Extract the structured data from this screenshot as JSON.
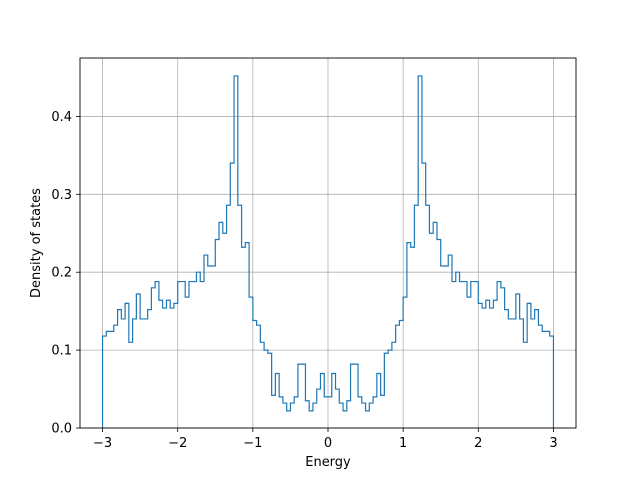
{
  "chart_data": {
    "type": "histogram-step",
    "title": "",
    "xlabel": "Energy",
    "ylabel": "Density of states",
    "xlim": [
      -3.3,
      3.3
    ],
    "ylim": [
      0,
      0.475
    ],
    "xticks": [
      -3,
      -2,
      -1,
      0,
      1,
      2,
      3
    ],
    "xtick_labels": [
      "−3",
      "−2",
      "−1",
      "0",
      "1",
      "2",
      "3"
    ],
    "yticks": [
      0.0,
      0.1,
      0.2,
      0.3,
      0.4
    ],
    "ytick_labels": [
      "0.0",
      "0.1",
      "0.2",
      "0.3",
      "0.4"
    ],
    "grid": true,
    "line_color": "#1f77b4",
    "bins": {
      "start": -3.0,
      "end": 3.0,
      "count": 120,
      "values": [
        0.118,
        0.124,
        0.124,
        0.132,
        0.152,
        0.14,
        0.16,
        0.11,
        0.14,
        0.172,
        0.14,
        0.14,
        0.152,
        0.18,
        0.188,
        0.164,
        0.154,
        0.164,
        0.154,
        0.16,
        0.188,
        0.188,
        0.168,
        0.188,
        0.188,
        0.2,
        0.188,
        0.222,
        0.208,
        0.208,
        0.242,
        0.264,
        0.25,
        0.286,
        0.34,
        0.452,
        0.286,
        0.232,
        0.238,
        0.168,
        0.138,
        0.132,
        0.11,
        0.1,
        0.096,
        0.042,
        0.07,
        0.04,
        0.032,
        0.022,
        0.032,
        0.04,
        0.082,
        0.082,
        0.035,
        0.022,
        0.032,
        0.05,
        0.07,
        0.04,
        0.04,
        0.07,
        0.05,
        0.032,
        0.022,
        0.035,
        0.082,
        0.082,
        0.04,
        0.032,
        0.022,
        0.032,
        0.04,
        0.07,
        0.042,
        0.096,
        0.1,
        0.11,
        0.132,
        0.138,
        0.168,
        0.238,
        0.232,
        0.286,
        0.452,
        0.34,
        0.286,
        0.25,
        0.264,
        0.242,
        0.208,
        0.208,
        0.222,
        0.188,
        0.2,
        0.188,
        0.188,
        0.168,
        0.188,
        0.188,
        0.16,
        0.154,
        0.164,
        0.154,
        0.164,
        0.188,
        0.18,
        0.152,
        0.14,
        0.14,
        0.172,
        0.14,
        0.11,
        0.16,
        0.14,
        0.152,
        0.132,
        0.124,
        0.124,
        0.118
      ]
    }
  }
}
